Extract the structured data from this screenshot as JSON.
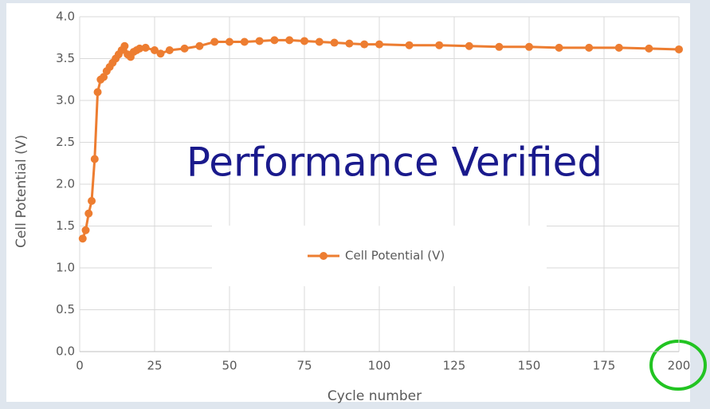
{
  "chart_data": {
    "type": "line",
    "xlabel": "Cycle number",
    "ylabel": "Cell Potential (V)",
    "annotation": "Performance Verified",
    "x": [
      1,
      2,
      3,
      4,
      5,
      6,
      7,
      8,
      9,
      10,
      11,
      12,
      13,
      14,
      15,
      16,
      17,
      18,
      19,
      20,
      22,
      25,
      27,
      30,
      35,
      40,
      45,
      50,
      55,
      60,
      65,
      70,
      75,
      80,
      85,
      90,
      95,
      100,
      110,
      120,
      130,
      140,
      150,
      160,
      170,
      180,
      190,
      200
    ],
    "series": [
      {
        "name": "Cell Potential (V)",
        "color": "#ed7d31",
        "values": [
          1.35,
          1.45,
          1.65,
          1.8,
          2.3,
          3.1,
          3.25,
          3.28,
          3.35,
          3.4,
          3.45,
          3.5,
          3.55,
          3.6,
          3.65,
          3.55,
          3.52,
          3.58,
          3.6,
          3.62,
          3.63,
          3.6,
          3.56,
          3.6,
          3.62,
          3.65,
          3.7,
          3.7,
          3.7,
          3.71,
          3.72,
          3.72,
          3.71,
          3.7,
          3.69,
          3.68,
          3.67,
          3.67,
          3.66,
          3.66,
          3.65,
          3.64,
          3.64,
          3.63,
          3.63,
          3.63,
          3.62,
          3.61
        ]
      }
    ],
    "xlim": [
      0,
      200
    ],
    "xticks": [
      0,
      25,
      50,
      75,
      100,
      125,
      150,
      175,
      200
    ],
    "ylim": [
      0,
      4
    ],
    "yticks": [
      {
        "value": 0,
        "label": "0.0"
      },
      0.5,
      {
        "value": 1,
        "label": "1.0"
      },
      1.5,
      {
        "value": 2,
        "label": "2.0"
      },
      2.5,
      {
        "value": 3,
        "label": "3.0"
      },
      3.5,
      {
        "value": 4,
        "label": "4.0"
      }
    ],
    "grid": true,
    "legend": "center"
  }
}
